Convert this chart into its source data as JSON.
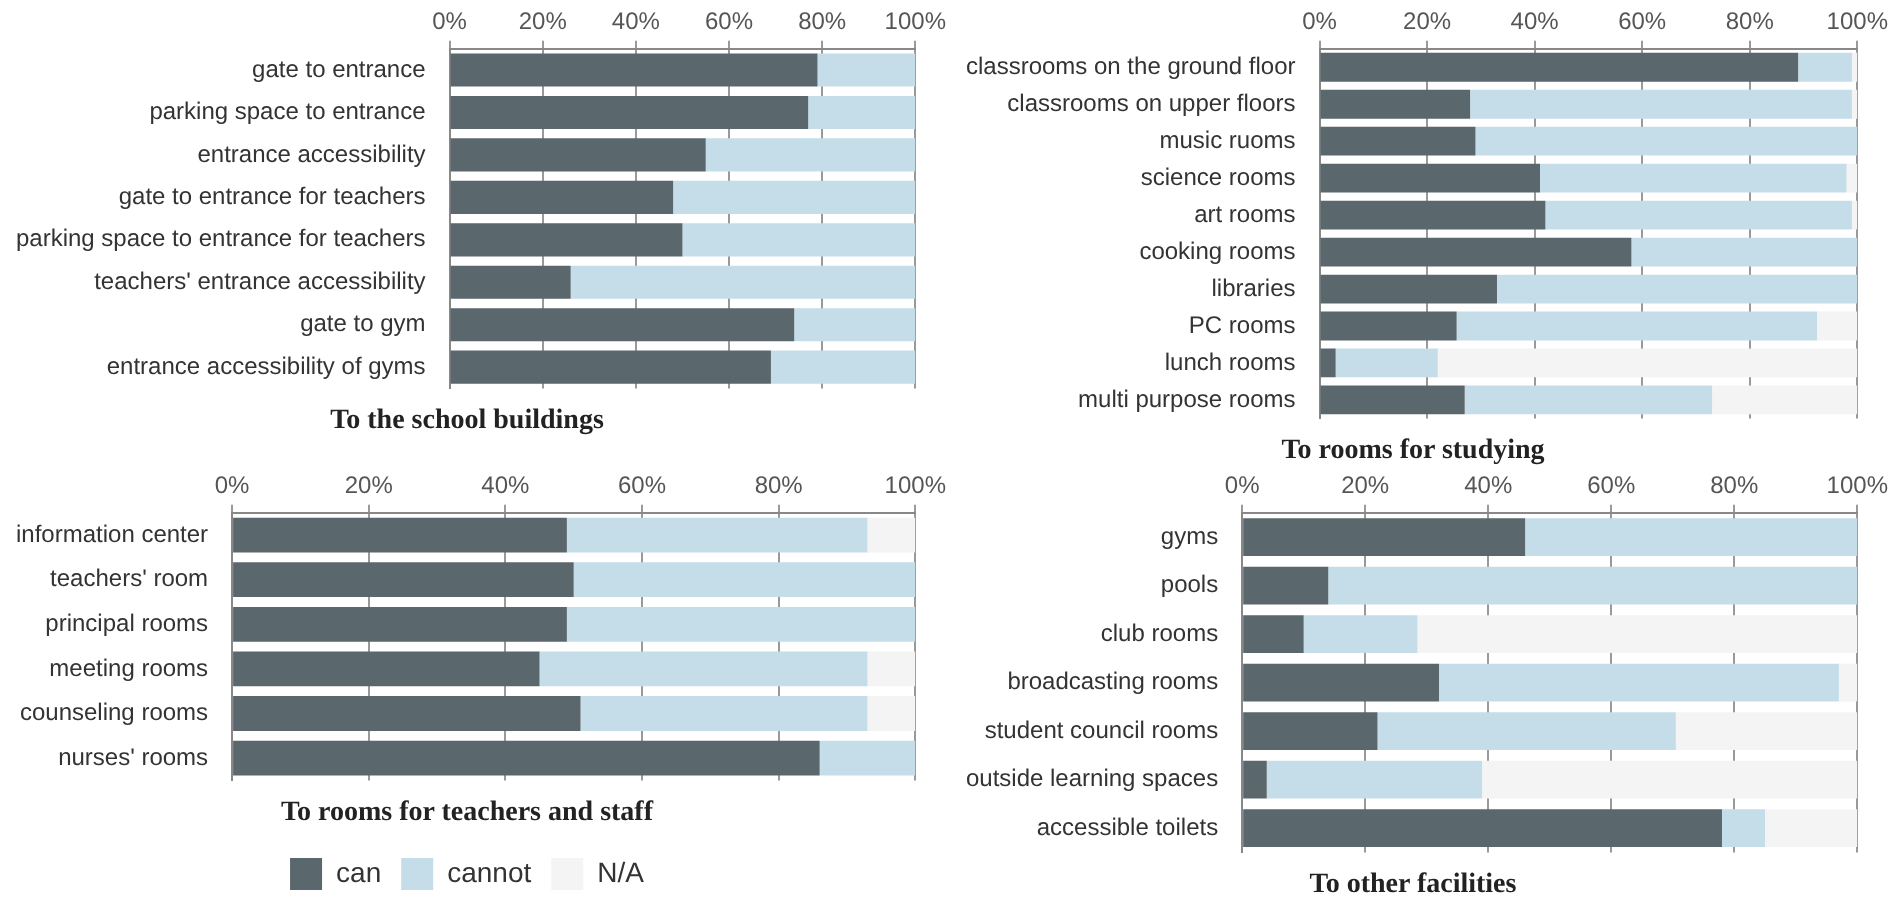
{
  "chart_data": [
    {
      "type": "bar",
      "orientation": "horizontal",
      "stacked": true,
      "title": "To the school buildings",
      "categories": [
        "gate to entrance",
        "parking space to entrance",
        "entrance accessibility",
        "gate to entrance for teachers",
        "parking space to entrance for teachers",
        "teachers' entrance accessibility",
        "gate to gym",
        "entrance accessibility of gyms"
      ],
      "series": [
        {
          "color": "#5a676c",
          "values": [
            79,
            77,
            55,
            48,
            50,
            26,
            74,
            69
          ]
        },
        {
          "color": "#c5dde8",
          "values": [
            21,
            23,
            45,
            52,
            50,
            74,
            26,
            31
          ]
        },
        {
          "color": "#f4f4f4",
          "values": [
            0,
            0,
            0,
            0,
            0,
            0,
            0,
            0
          ]
        }
      ],
      "xlim": [
        0,
        100
      ],
      "xticks": [
        {
          "value": 0,
          "label": "0%"
        },
        {
          "value": 20,
          "label": "20%"
        },
        {
          "value": 40,
          "label": "40%"
        },
        {
          "value": 60,
          "label": "60%"
        },
        {
          "value": 80,
          "label": "80%"
        },
        {
          "value": 100,
          "label": "100%"
        }
      ],
      "grid": "x"
    },
    {
      "type": "bar",
      "orientation": "horizontal",
      "stacked": true,
      "title": "To rooms for studying",
      "categories": [
        "classrooms on the ground floor",
        "classrooms on upper floors",
        "music ruoms",
        "science rooms",
        "art rooms",
        "cooking rooms",
        "libraries",
        "PC rooms",
        "lunch rooms",
        "multi purpose rooms"
      ],
      "series": [
        {
          "color": "#5a676c",
          "values": [
            89,
            28,
            29,
            41,
            42,
            58,
            33,
            25.5,
            3,
            27
          ]
        },
        {
          "color": "#c5dde8",
          "values": [
            10,
            71,
            71,
            57,
            57,
            42,
            67,
            67,
            19,
            46
          ]
        },
        {
          "color": "#f4f4f4",
          "values": [
            1,
            1,
            0,
            2,
            1,
            0,
            0,
            7.5,
            78,
            27
          ]
        }
      ],
      "xlim": [
        0,
        100
      ],
      "xticks": [
        {
          "value": 0,
          "label": "0%"
        },
        {
          "value": 20,
          "label": "20%"
        },
        {
          "value": 40,
          "label": "40%"
        },
        {
          "value": 60,
          "label": "60%"
        },
        {
          "value": 80,
          "label": "80%"
        },
        {
          "value": 100,
          "label": "100%"
        }
      ],
      "grid": "x"
    },
    {
      "type": "bar",
      "orientation": "horizontal",
      "stacked": true,
      "title": "To rooms for teachers and staff",
      "categories": [
        "information center",
        "teachers' room",
        "principal rooms",
        "meeting rooms",
        "counseling rooms",
        "nurses' rooms"
      ],
      "series": [
        {
          "name": "can",
          "color": "#5a676c",
          "values": [
            49,
            50,
            49,
            45,
            51,
            86
          ]
        },
        {
          "name": "cannot",
          "color": "#c5dde8",
          "values": [
            44,
            50,
            51,
            48,
            42,
            14
          ]
        },
        {
          "name": "N/A",
          "color": "#f4f4f4",
          "values": [
            7,
            0,
            0,
            7,
            7,
            0
          ]
        }
      ],
      "xlim": [
        0,
        100
      ],
      "xticks": [
        {
          "value": 0,
          "label": "0%"
        },
        {
          "value": 20,
          "label": "20%"
        },
        {
          "value": 40,
          "label": "40%"
        },
        {
          "value": 60,
          "label": "60%"
        },
        {
          "value": 80,
          "label": "80%"
        },
        {
          "value": 100,
          "label": "100%"
        }
      ],
      "grid": "x",
      "legend": "bottom"
    },
    {
      "type": "bar",
      "orientation": "horizontal",
      "stacked": true,
      "title": "To other facilities",
      "categories": [
        "gyms",
        "pools",
        "club rooms",
        "broadcasting rooms",
        "student council rooms",
        "outside learning spaces",
        "accessible toilets"
      ],
      "series": [
        {
          "color": "#5a676c",
          "values": [
            46,
            14,
            10,
            32,
            22,
            4,
            78
          ]
        },
        {
          "color": "#c5dde8",
          "values": [
            54,
            86,
            18.5,
            65,
            48.5,
            35,
            7
          ]
        },
        {
          "color": "#f4f4f4",
          "values": [
            0,
            0,
            71.5,
            3,
            29.5,
            61,
            15
          ]
        }
      ],
      "xlim": [
        0,
        100
      ],
      "xticks": [
        {
          "value": 0,
          "label": "0%"
        },
        {
          "value": 20,
          "label": "20%"
        },
        {
          "value": 40,
          "label": "40%"
        },
        {
          "value": 60,
          "label": "60%"
        },
        {
          "value": 80,
          "label": "80%"
        },
        {
          "value": 100,
          "label": "100%"
        }
      ],
      "grid": "x"
    }
  ]
}
